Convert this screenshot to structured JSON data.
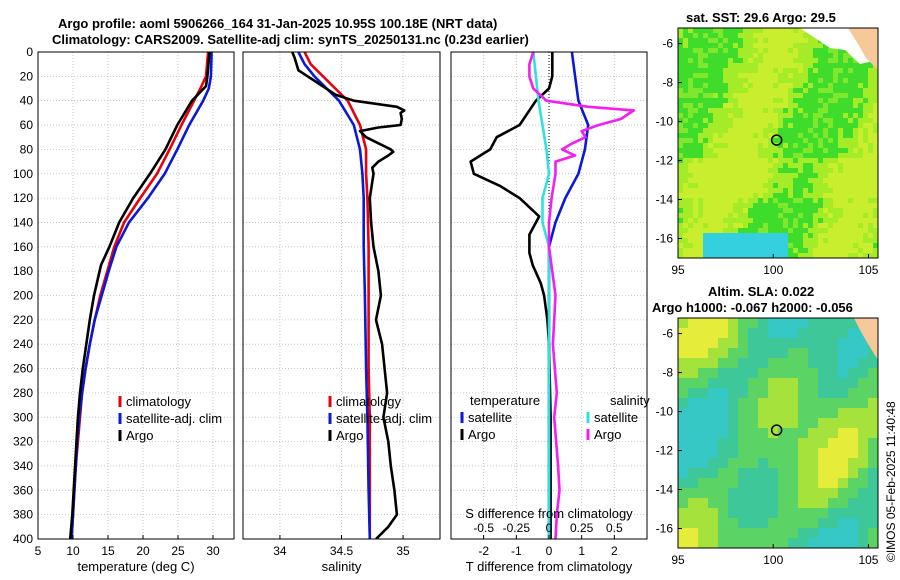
{
  "titles": {
    "line1": "Argo profile: aoml 5906266_164 31-Jan-2025 10.95S 100.18E (NRT data)",
    "line2": "Climatology: CARS2009. Satellite-adj clim: synTS_20250131.nc (0.23d earlier)",
    "sst": "sat. SST: 29.6 Argo: 29.5",
    "sla1": "Altim. SLA: 0.022",
    "sla2": "Argo h1000: -0.067 h2000: -0.056"
  },
  "side_text": "©IMOS 05-Feb-2025 11:40:48",
  "colors": {
    "clim": "#e8000b",
    "sat": "#0a19d6",
    "argo": "#000000",
    "sal_sat": "#33e0e0",
    "sal_argo": "#f21ef2"
  },
  "chart_data": [
    {
      "type": "line",
      "panel": "temperature",
      "xlabel": "temperature (deg C)",
      "ylabel": "",
      "xlim": [
        5,
        33
      ],
      "ylim": [
        400,
        0
      ],
      "xticks": [
        5,
        10,
        15,
        20,
        25,
        30
      ],
      "yticks": [
        0,
        20,
        40,
        60,
        80,
        100,
        120,
        140,
        160,
        180,
        200,
        220,
        240,
        260,
        280,
        300,
        320,
        340,
        360,
        380,
        400
      ],
      "legend": {
        "position": "middle-right",
        "entries": [
          "climatology",
          "satellite-adj. clim",
          "Argo"
        ]
      },
      "series": [
        {
          "name": "climatology",
          "color": "clim",
          "depth": [
            0,
            20,
            30,
            40,
            60,
            80,
            100,
            120,
            140,
            160,
            180,
            200,
            220,
            240,
            260,
            280,
            300,
            320,
            340,
            360,
            380,
            400
          ],
          "values": [
            29.3,
            29.0,
            28.2,
            27.3,
            25.5,
            23.8,
            22.0,
            19.6,
            17.3,
            15.9,
            14.9,
            13.9,
            13.1,
            12.4,
            11.8,
            11.3,
            11.0,
            10.7,
            10.4,
            10.2,
            10.0,
            9.8
          ]
        },
        {
          "name": "satellite-adj. clim",
          "color": "sat",
          "depth": [
            0,
            20,
            30,
            40,
            60,
            80,
            100,
            120,
            140,
            160,
            180,
            200,
            220,
            240,
            260,
            280,
            300,
            320,
            340,
            360,
            380,
            400
          ],
          "values": [
            29.8,
            29.7,
            29.4,
            28.6,
            26.6,
            24.9,
            23.1,
            20.7,
            18.0,
            16.2,
            15.1,
            14.1,
            13.1,
            12.4,
            11.8,
            11.3,
            10.9,
            10.6,
            10.4,
            10.2,
            10.0,
            9.8
          ]
        },
        {
          "name": "Argo",
          "color": "argo",
          "depth": [
            0,
            20,
            28,
            40,
            60,
            80,
            100,
            120,
            140,
            160,
            175,
            190,
            200,
            220,
            240,
            260,
            280,
            300,
            320,
            340,
            360,
            380,
            400
          ],
          "values": [
            29.5,
            29.2,
            29.0,
            27.0,
            24.9,
            23.2,
            21.0,
            18.6,
            16.6,
            15.2,
            14.0,
            13.4,
            13.0,
            12.4,
            11.9,
            11.4,
            11.0,
            10.7,
            10.5,
            10.3,
            10.1,
            9.9,
            9.6
          ]
        }
      ]
    },
    {
      "type": "line",
      "panel": "salinity",
      "xlabel": "salinity",
      "ylabel": "",
      "xlim": [
        33.7,
        35.3
      ],
      "ylim": [
        400,
        0
      ],
      "xticks": [
        34,
        34.5,
        35
      ],
      "legend": {
        "position": "middle-right",
        "entries": [
          "climatology",
          "satellite-adj. clim",
          "Argo"
        ]
      },
      "series": [
        {
          "name": "climatology",
          "color": "clim",
          "depth": [
            0,
            10,
            20,
            30,
            40,
            60,
            80,
            100,
            120,
            160,
            200,
            260,
            300,
            360,
            400
          ],
          "values": [
            34.2,
            34.25,
            34.35,
            34.45,
            34.55,
            34.65,
            34.7,
            34.7,
            34.71,
            34.72,
            34.72,
            34.72,
            34.73,
            34.73,
            34.73
          ]
        },
        {
          "name": "satellite-adj. clim",
          "color": "sat",
          "depth": [
            0,
            10,
            20,
            30,
            40,
            60,
            80,
            100,
            120,
            160,
            200,
            260,
            300,
            360,
            400
          ],
          "values": [
            34.15,
            34.2,
            34.28,
            34.38,
            34.48,
            34.6,
            34.65,
            34.67,
            34.68,
            34.68,
            34.69,
            34.7,
            34.71,
            34.72,
            34.73
          ]
        },
        {
          "name": "Argo",
          "color": "argo",
          "depth": [
            0,
            5,
            15,
            25,
            35,
            40,
            45,
            48,
            50,
            55,
            60,
            62,
            65,
            70,
            75,
            80,
            82,
            85,
            90,
            95,
            100,
            120,
            140,
            160,
            180,
            200,
            220,
            240,
            260,
            280,
            300,
            320,
            340,
            360,
            380,
            390,
            400
          ],
          "values": [
            34.1,
            34.12,
            34.15,
            34.3,
            34.45,
            34.6,
            34.95,
            35.01,
            34.98,
            34.99,
            34.98,
            34.8,
            34.65,
            34.7,
            34.8,
            34.9,
            34.92,
            34.88,
            34.8,
            34.75,
            34.76,
            34.73,
            34.74,
            34.76,
            34.8,
            34.82,
            34.78,
            34.83,
            34.85,
            34.87,
            34.84,
            34.88,
            34.9,
            34.93,
            34.95,
            34.88,
            34.78
          ]
        }
      ]
    },
    {
      "type": "line",
      "panel": "differences",
      "xlabel": "T difference from climatology",
      "xlabel_top": "S difference from climatology",
      "xlim": [
        -3,
        3
      ],
      "ylim": [
        400,
        0
      ],
      "xticks": [
        -2,
        -1,
        0,
        1,
        2
      ],
      "xticks_top_labels": [
        "-0.5",
        "-0.25",
        "0",
        "0.25",
        "0.5"
      ],
      "legend": {
        "position": "middle",
        "temperature_title": "temperature",
        "salinity_title": "salinity",
        "entries_temp": [
          "satellite",
          "Argo"
        ],
        "entries_sal": [
          "satellite",
          "Argo"
        ]
      },
      "series": [
        {
          "name": "temperature satellite",
          "color": "sat",
          "depth": [
            0,
            20,
            40,
            60,
            80,
            100,
            120,
            140,
            160,
            180,
            200,
            240,
            300,
            360,
            400
          ],
          "values": [
            0.7,
            0.8,
            0.9,
            1.2,
            1.1,
            0.9,
            0.5,
            0.2,
            0.0,
            0.0,
            0.0,
            0.0,
            0.0,
            0.0,
            0.0
          ]
        },
        {
          "name": "temperature Argo",
          "color": "argo",
          "depth": [
            0,
            20,
            30,
            40,
            60,
            70,
            80,
            90,
            100,
            110,
            120,
            135,
            150,
            165,
            175,
            190,
            200,
            220,
            240,
            300,
            400
          ],
          "values": [
            0.1,
            0.1,
            0.0,
            -0.4,
            -0.9,
            -1.6,
            -1.8,
            -2.4,
            -2.3,
            -1.5,
            -0.9,
            -0.3,
            -0.6,
            -0.6,
            -0.5,
            -0.25,
            -0.15,
            -0.05,
            0.0,
            0.05,
            0.05
          ]
        },
        {
          "name": "salinity satellite",
          "color": "sal_sat",
          "depth": [
            0,
            20,
            40,
            60,
            80,
            100,
            120,
            140,
            160,
            200,
            260,
            300,
            360,
            400
          ],
          "values": [
            -0.12,
            -0.1,
            -0.08,
            -0.05,
            -0.02,
            0.0,
            -0.05,
            -0.05,
            0.0,
            0.0,
            0.0,
            0.0,
            0.0,
            0.0
          ]
        },
        {
          "name": "salinity Argo",
          "color": "sal_argo",
          "depth": [
            0,
            10,
            20,
            30,
            40,
            45,
            48,
            50,
            55,
            60,
            65,
            70,
            75,
            80,
            85,
            90,
            100,
            120,
            140,
            160,
            200,
            240,
            280,
            300,
            340,
            360,
            380,
            400
          ],
          "values": [
            -0.12,
            -0.15,
            -0.15,
            -0.12,
            -0.02,
            0.3,
            0.65,
            0.62,
            0.55,
            0.38,
            0.25,
            0.28,
            0.18,
            0.1,
            0.2,
            0.05,
            0.05,
            0.02,
            0.0,
            0.0,
            0.05,
            0.03,
            0.06,
            0.04,
            0.07,
            0.08,
            0.06,
            0.05
          ]
        }
      ]
    },
    {
      "type": "heatmap",
      "panel": "sst_map",
      "title": "sat. SST: 29.6 Argo: 29.5",
      "xlim": [
        95,
        105.5
      ],
      "ylim": [
        -17,
        -5.2
      ],
      "xticks": [
        95,
        100,
        105
      ],
      "yticks": [
        -6,
        -8,
        -10,
        -12,
        -14,
        -16
      ],
      "float_position": {
        "lon": 100.18,
        "lat": -10.95
      }
    },
    {
      "type": "heatmap",
      "panel": "sla_map",
      "title": "Altim. SLA: 0.022",
      "xlim": [
        95,
        105.5
      ],
      "ylim": [
        -17,
        -5.2
      ],
      "xticks": [
        95,
        100,
        105
      ],
      "yticks": [
        -6,
        -8,
        -10,
        -12,
        -14,
        -16
      ],
      "float_position": {
        "lon": 100.18,
        "lat": -10.95
      }
    }
  ]
}
